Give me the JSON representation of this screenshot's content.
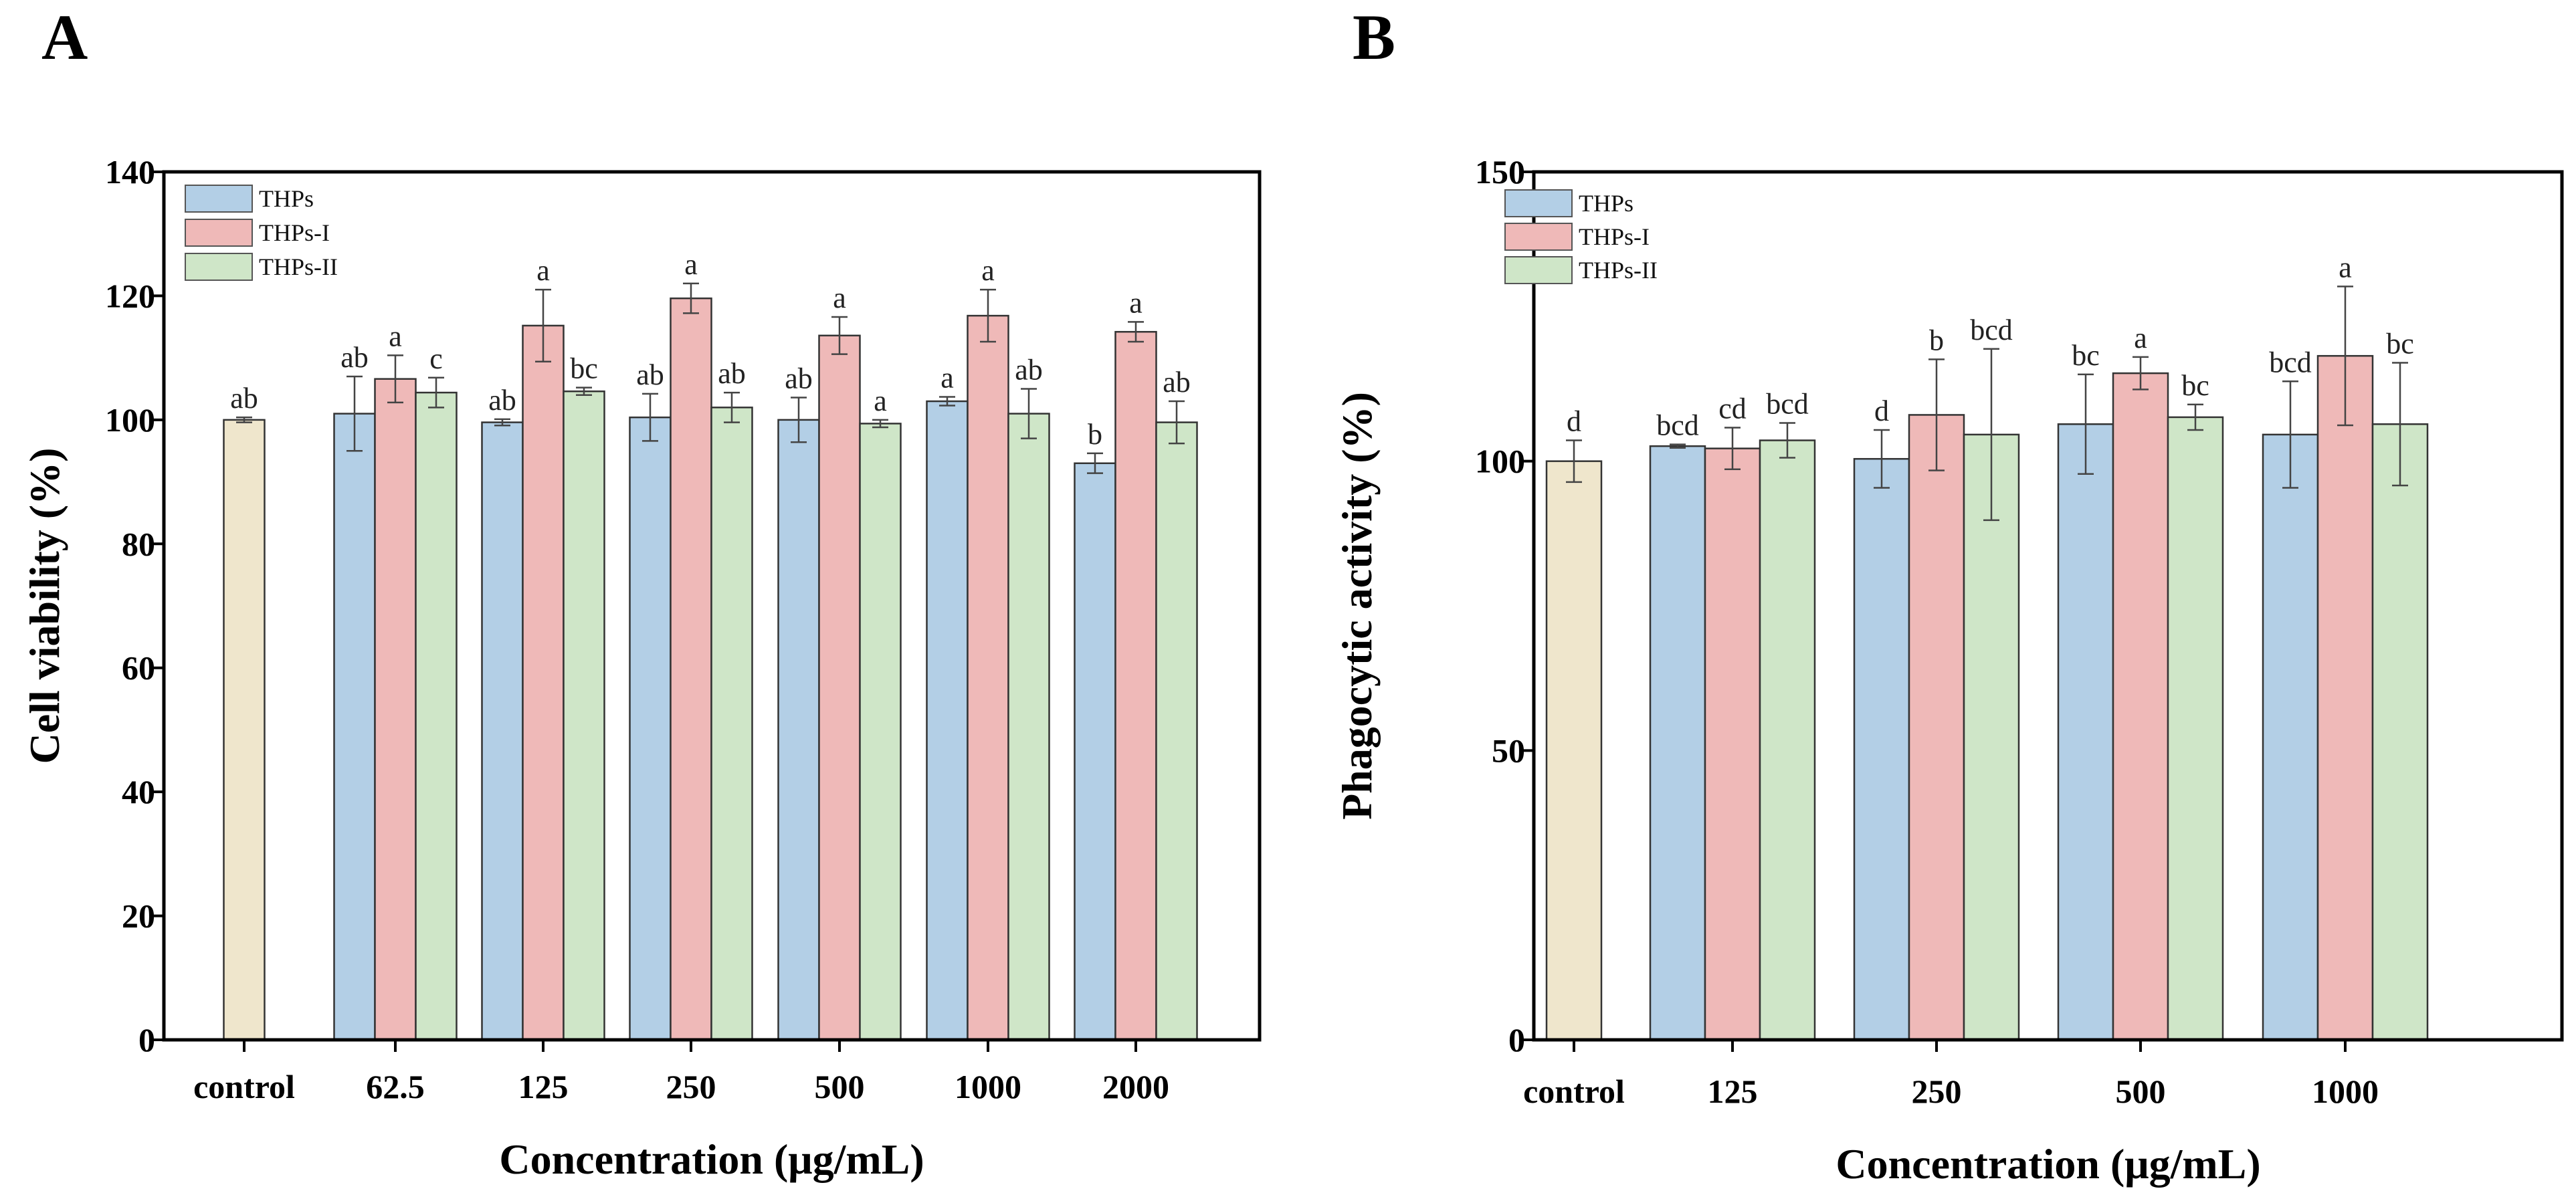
{
  "chart_data": [
    {
      "panel": "A",
      "type": "bar",
      "title": "",
      "xlabel": "Concentration (μg/mL)",
      "ylabel": "Cell viability (%)",
      "ylim": [
        0,
        140
      ],
      "yticks": [
        0,
        20,
        40,
        60,
        80,
        100,
        120,
        140
      ],
      "ytick_labels": [
        "0",
        "20",
        "40",
        "60",
        "80",
        "100",
        "120",
        "140"
      ],
      "categories": [
        "control",
        "62.5",
        "125",
        "250",
        "500",
        "1000",
        "2000"
      ],
      "legend": {
        "position": "top-left",
        "entries": [
          "THPs",
          "THPs-I",
          "THPs-II"
        ]
      },
      "control": {
        "value": 100.0,
        "error": 0.4,
        "label": "ab",
        "color": "#efe6cc"
      },
      "series": [
        {
          "name": "THPs",
          "color": "#b3cfe6",
          "values": [
            null,
            101.0,
            99.6,
            100.4,
            100.0,
            103.0,
            93.0
          ],
          "errors": [
            null,
            6.0,
            0.5,
            3.8,
            3.6,
            0.7,
            1.6
          ],
          "labels": [
            null,
            "ab",
            "ab",
            "ab",
            "ab",
            "a",
            "b"
          ]
        },
        {
          "name": "THPs-I",
          "color": "#efb9b8",
          "values": [
            null,
            106.6,
            115.2,
            119.6,
            113.6,
            116.8,
            114.2
          ],
          "errors": [
            null,
            3.8,
            5.8,
            2.4,
            3.0,
            4.2,
            1.6
          ],
          "labels": [
            null,
            "a",
            "a",
            "a",
            "a",
            "a",
            "a"
          ]
        },
        {
          "name": "THPs-II",
          "color": "#cfe6c8",
          "values": [
            null,
            104.4,
            104.6,
            102.0,
            99.4,
            101.0,
            99.6
          ],
          "errors": [
            null,
            2.4,
            0.6,
            2.4,
            0.6,
            4.0,
            3.4
          ],
          "labels": [
            null,
            "c",
            "bc",
            "ab",
            "a",
            "ab",
            "ab"
          ]
        }
      ]
    },
    {
      "panel": "B",
      "type": "bar",
      "title": "",
      "xlabel": "Concentration (μg/mL)",
      "ylabel": "Phagocytic activity (%)",
      "ylim": [
        0,
        150
      ],
      "yticks": [
        0,
        50,
        100,
        150
      ],
      "ytick_labels": [
        "0",
        "50",
        "100",
        "150"
      ],
      "categories": [
        "control",
        "125",
        "250",
        "500",
        "1000"
      ],
      "legend": {
        "position": "top-left",
        "entries": [
          "THPs",
          "THPs-I",
          "THPs-II"
        ]
      },
      "control": {
        "value": 100.0,
        "error": 3.6,
        "label": "d",
        "color": "#efe6cc"
      },
      "series": [
        {
          "name": "THPs",
          "color": "#b3cfe6",
          "values": [
            null,
            102.6,
            100.4,
            106.4,
            104.6
          ],
          "errors": [
            null,
            0.3,
            5.0,
            8.6,
            9.2
          ],
          "labels": [
            null,
            "bcd",
            "d",
            "bc",
            "bcd"
          ]
        },
        {
          "name": "THPs-I",
          "color": "#efb9b8",
          "values": [
            null,
            102.2,
            108.0,
            115.2,
            118.2
          ],
          "errors": [
            null,
            3.6,
            9.6,
            2.8,
            12.0
          ],
          "labels": [
            null,
            "cd",
            "b",
            "a",
            "a"
          ]
        },
        {
          "name": "THPs-II",
          "color": "#cfe6c8",
          "values": [
            null,
            103.6,
            104.6,
            107.6,
            106.4
          ],
          "errors": [
            null,
            3.0,
            14.8,
            2.2,
            10.6
          ],
          "labels": [
            null,
            "bcd",
            "bcd",
            "bc",
            "bc"
          ]
        }
      ]
    }
  ]
}
